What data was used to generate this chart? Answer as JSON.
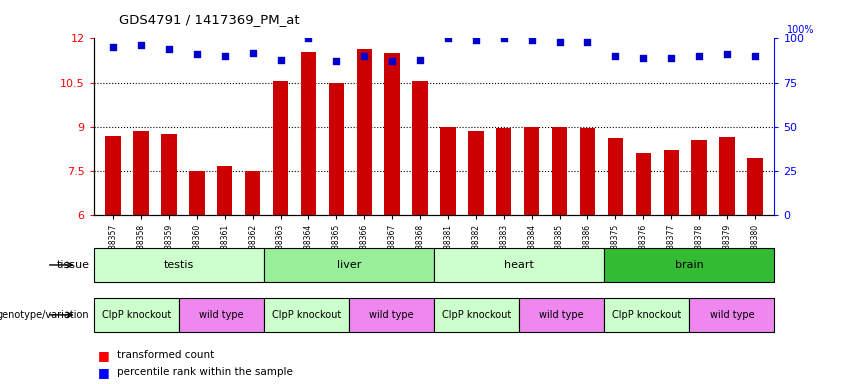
{
  "title": "GDS4791 / 1417369_PM_at",
  "samples": [
    "GSM988357",
    "GSM988358",
    "GSM988359",
    "GSM988360",
    "GSM988361",
    "GSM988362",
    "GSM988363",
    "GSM988364",
    "GSM988365",
    "GSM988366",
    "GSM988367",
    "GSM988368",
    "GSM988381",
    "GSM988382",
    "GSM988383",
    "GSM988384",
    "GSM988385",
    "GSM988386",
    "GSM988375",
    "GSM988376",
    "GSM988377",
    "GSM988378",
    "GSM988379",
    "GSM988380"
  ],
  "bar_values": [
    8.7,
    8.85,
    8.75,
    7.5,
    7.65,
    7.5,
    10.55,
    11.55,
    10.5,
    11.65,
    11.5,
    10.55,
    9.0,
    8.85,
    8.95,
    9.0,
    9.0,
    8.95,
    8.6,
    8.1,
    8.2,
    8.55,
    8.65,
    7.95
  ],
  "percentile_values": [
    95,
    96,
    94,
    91,
    90,
    92,
    88,
    100,
    87,
    90,
    87,
    88,
    100,
    99,
    100,
    99,
    98,
    98,
    90,
    89,
    89,
    90,
    91,
    90
  ],
  "ylim_left": [
    6,
    12
  ],
  "ylim_right": [
    0,
    100
  ],
  "yticks_left": [
    6,
    7.5,
    9,
    10.5,
    12
  ],
  "yticks_right": [
    0,
    25,
    50,
    75,
    100
  ],
  "bar_color": "#cc0000",
  "dot_color": "#0000cc",
  "tissue_groups": [
    {
      "label": "testis",
      "start": 0,
      "end": 5,
      "color": "#ccffcc"
    },
    {
      "label": "liver",
      "start": 6,
      "end": 11,
      "color": "#99ee99"
    },
    {
      "label": "heart",
      "start": 12,
      "end": 17,
      "color": "#ccffcc"
    },
    {
      "label": "brain",
      "start": 18,
      "end": 23,
      "color": "#33bb33"
    }
  ],
  "genotype_groups": [
    {
      "label": "ClpP knockout",
      "start": 0,
      "end": 2,
      "color": "#ccffcc"
    },
    {
      "label": "wild type",
      "start": 3,
      "end": 5,
      "color": "#ee88ee"
    },
    {
      "label": "ClpP knockout",
      "start": 6,
      "end": 8,
      "color": "#ccffcc"
    },
    {
      "label": "wild type",
      "start": 9,
      "end": 11,
      "color": "#ee88ee"
    },
    {
      "label": "ClpP knockout",
      "start": 12,
      "end": 14,
      "color": "#ccffcc"
    },
    {
      "label": "wild type",
      "start": 15,
      "end": 17,
      "color": "#ee88ee"
    },
    {
      "label": "ClpP knockout",
      "start": 18,
      "end": 20,
      "color": "#ccffcc"
    },
    {
      "label": "wild type",
      "start": 21,
      "end": 23,
      "color": "#ee88ee"
    }
  ],
  "legend_items": [
    {
      "label": "transformed count",
      "color": "#cc0000"
    },
    {
      "label": "percentile rank within the sample",
      "color": "#0000cc"
    }
  ],
  "fig_width": 8.51,
  "fig_height": 3.84,
  "dpi": 100
}
